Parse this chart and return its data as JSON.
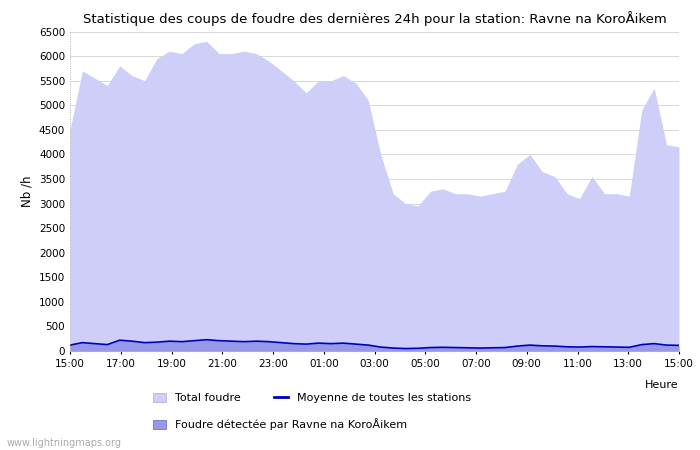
{
  "title": "Statistique des coups de foudre des dernières 24h pour la station: Ravne na KoroÅikem",
  "ylabel": "Nb /h",
  "xlabel": "Heure",
  "watermark": "www.lightningmaps.org",
  "ylim": [
    0,
    6500
  ],
  "yticks": [
    0,
    500,
    1000,
    1500,
    2000,
    2500,
    3000,
    3500,
    4000,
    4500,
    5000,
    5500,
    6000,
    6500
  ],
  "xtick_labels": [
    "15:00",
    "17:00",
    "19:00",
    "21:00",
    "23:00",
    "01:00",
    "03:00",
    "05:00",
    "07:00",
    "09:00",
    "11:00",
    "13:00",
    "15:00"
  ],
  "fill_total_color": "#cecef8",
  "fill_local_color": "#9898e8",
  "mean_line_color": "#0000bb",
  "background_color": "#ffffff",
  "grid_color": "#d8d8d8",
  "legend_labels": [
    "Total foudre",
    "Moyenne de toutes les stations",
    "Foudre détectée par Ravne na KoroÅikem"
  ],
  "total_foudre": [
    4500,
    5700,
    5550,
    5400,
    5800,
    5600,
    5500,
    5950,
    6100,
    6050,
    6250,
    6300,
    6050,
    6050,
    6100,
    6050,
    5900,
    5700,
    5500,
    5250,
    5500,
    5500,
    5600,
    5450,
    5100,
    4000,
    3200,
    3000,
    2950,
    3250,
    3300,
    3200,
    3200,
    3150,
    3200,
    3250,
    3800,
    4000,
    3650,
    3550,
    3200,
    3100,
    3550,
    3200,
    3200,
    3150,
    4900,
    5350,
    4200,
    4150
  ],
  "local_foudre": [
    120,
    170,
    150,
    130,
    220,
    200,
    170,
    180,
    200,
    190,
    210,
    230,
    210,
    200,
    190,
    200,
    190,
    170,
    150,
    140,
    160,
    150,
    160,
    140,
    120,
    80,
    60,
    50,
    55,
    70,
    75,
    70,
    65,
    60,
    65,
    70,
    100,
    120,
    105,
    100,
    85,
    80,
    90,
    85,
    80,
    75,
    130,
    150,
    120,
    115
  ],
  "mean_line": [
    120,
    170,
    150,
    130,
    220,
    200,
    170,
    180,
    200,
    190,
    210,
    230,
    210,
    200,
    190,
    200,
    190,
    170,
    150,
    140,
    160,
    150,
    160,
    140,
    120,
    80,
    60,
    50,
    55,
    70,
    75,
    70,
    65,
    60,
    65,
    70,
    100,
    120,
    105,
    100,
    85,
    80,
    90,
    85,
    80,
    75,
    130,
    150,
    120,
    115
  ],
  "n_points": 50
}
